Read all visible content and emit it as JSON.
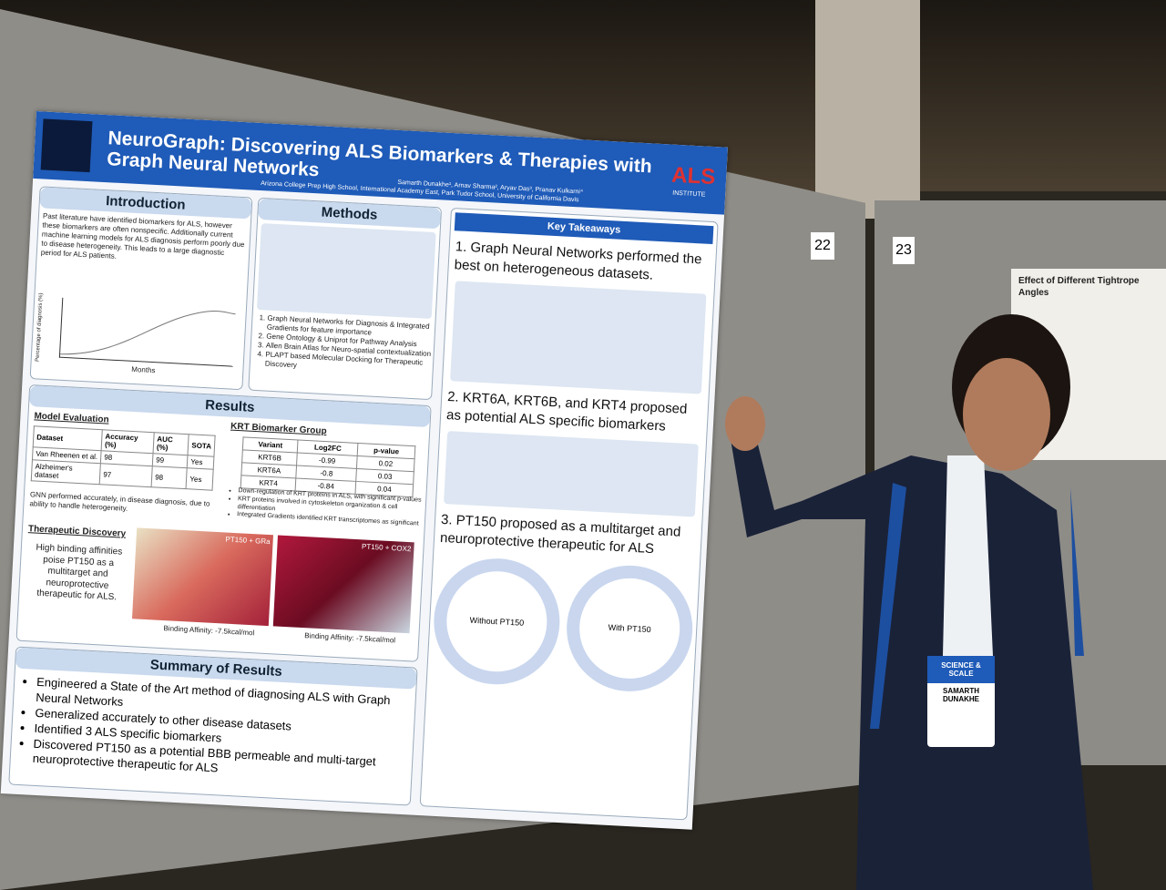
{
  "poster": {
    "title": "NeuroGraph: Discovering ALS Biomarkers & Therapies with Graph Neural Networks",
    "logo": "ALS",
    "logo_sub": "INSTITUTE",
    "authors": "Samarth Dunakhe¹, Arnav Sharma², Aryav Das³, Pranav Kulkarni⁴",
    "affiliations": "Arizona College Prep High School, International Academy East, Park Tudor School, University of California Davis"
  },
  "introduction": {
    "heading": "Introduction",
    "text": "Past literature have identified biomarkers for ALS, however these biomarkers are often nonspecific. Additionally current machine learning models for ALS diagnosis perform poorly due to disease heterogeneity. This leads to a large diagnostic period for ALS patients.",
    "chart_x_label": "Months",
    "chart_y_label": "Percentage of diagnosis (%)"
  },
  "methods": {
    "heading": "Methods",
    "steps": [
      "Graph Neural Networks for Diagnosis & Integrated Gradients for feature importance",
      "Gene Ontology & Uniprot for Pathway Analysis",
      "Allen Brain Atlas for Neuro-spatial contextualization",
      "PLAPT based Molecular Docking for Therapeutic Discovery"
    ]
  },
  "results": {
    "heading": "Results",
    "model_evaluation": {
      "heading": "Model Evaluation",
      "columns": [
        "Dataset",
        "Accuracy (%)",
        "AUC (%)",
        "SOTA"
      ],
      "rows": [
        [
          "Van Rheenen et al.",
          "98",
          "99",
          "Yes"
        ],
        [
          "Alzheimer's dataset",
          "97",
          "98",
          "Yes"
        ]
      ],
      "note": "GNN performed accurately, in disease diagnosis, due to ability to handle heterogeneity."
    },
    "krt": {
      "heading": "KRT Biomarker Group",
      "columns": [
        "Variant",
        "Log2FC",
        "p-value"
      ],
      "rows": [
        [
          "KRT6B",
          "-0.99",
          "0.02"
        ],
        [
          "KRT6A",
          "-0.8",
          "0.03"
        ],
        [
          "KRT4",
          "-0.84",
          "0.04"
        ]
      ],
      "bullets": [
        "Down-regulation of KRT proteins in ALS, with significant p-values",
        "KRT proteins involved in cytoskeleton organization & cell differentiation",
        "Integrated Gradients identified KRT transcriptomes as significant"
      ]
    },
    "therapeutic": {
      "heading": "Therapeutic Discovery",
      "text": "High binding affinities poise PT150 as a multitarget and neuroprotective therapeutic for ALS.",
      "image_labels": [
        "PT150 + GRa",
        "PT150 + COX2"
      ],
      "captions": [
        "Binding Affinity: -7.5kcal/mol",
        "Binding Affinity: -7.5kcal/mol"
      ]
    }
  },
  "summary": {
    "heading": "Summary of Results",
    "items": [
      "Engineered a State of the Art method of diagnosing ALS with Graph Neural Networks",
      "Generalized accurately to other disease datasets",
      "Identified 3 ALS specific biomarkers",
      "Discovered PT150 as a potential BBB permeable and multi-target neuroprotective therapeutic for ALS"
    ]
  },
  "key_takeaways": {
    "heading": "Key Takeaways",
    "points": [
      "1. Graph Neural Networks performed the best on heterogeneous datasets.",
      "2. KRT6A, KRT6B, and KRT4 proposed as potential ALS specific biomarkers",
      "3. PT150 proposed as a multitarget and neuroprotective therapeutic for ALS"
    ],
    "diagram_labels": [
      "Without PT150",
      "With PT150"
    ]
  },
  "booth": {
    "numbers": [
      "22",
      "23"
    ]
  },
  "neighbor_poster": {
    "title": "Effect of Different Tightrope Angles"
  },
  "badge": {
    "event": "SCIENCE & SCALE",
    "name": "SAMARTH DUNAKHE"
  }
}
